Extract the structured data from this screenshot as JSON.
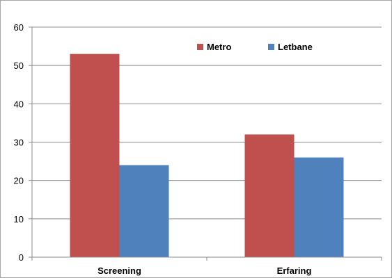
{
  "chart_data": {
    "type": "bar",
    "categories": [
      "Screening",
      "Erfaring"
    ],
    "series": [
      {
        "name": "Metro",
        "values": [
          53,
          32
        ],
        "color": "#c0504d"
      },
      {
        "name": "Letbane",
        "values": [
          24,
          26
        ],
        "color": "#4f81bd"
      }
    ],
    "ylim": [
      0,
      60
    ],
    "yticks": [
      0,
      10,
      20,
      30,
      40,
      50,
      60
    ],
    "grid": true,
    "legend": "top-right"
  }
}
